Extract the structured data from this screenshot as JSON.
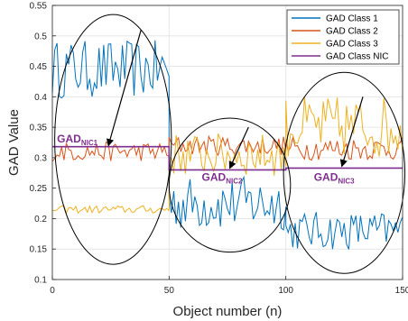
{
  "chart_data": {
    "type": "line",
    "title": "",
    "xlabel": "Object number (n)",
    "ylabel": "GAD Value",
    "xlim": [
      0,
      150
    ],
    "ylim": [
      0.1,
      0.55
    ],
    "x_ticks": [
      "0",
      "50",
      "100",
      "150"
    ],
    "y_ticks": [
      "0.1",
      "0.15",
      "0.2",
      "0.25",
      "0.3",
      "0.35",
      "0.4",
      "0.45",
      "0.5",
      "0.55"
    ],
    "grid": true,
    "legend": {
      "position": "top-right",
      "entries": [
        "GAD Class 1",
        "GAD Class 2",
        "GAD Class 3",
        "GAD Class NIC"
      ]
    },
    "series": [
      {
        "name": "GAD Class 1",
        "color": "#0072BD",
        "segments": [
          {
            "x_start": 0,
            "x_end": 50,
            "mean": 0.445,
            "spread": 0.03
          },
          {
            "x_start": 50,
            "x_end": 100,
            "mean": 0.225,
            "spread": 0.028
          },
          {
            "x_start": 100,
            "x_end": 150,
            "mean": 0.18,
            "spread": 0.02
          }
        ]
      },
      {
        "name": "GAD Class 2",
        "color": "#D95319",
        "segments": [
          {
            "x_start": 0,
            "x_end": 50,
            "mean": 0.31,
            "spread": 0.01
          },
          {
            "x_start": 50,
            "x_end": 100,
            "mean": 0.32,
            "spread": 0.01
          },
          {
            "x_start": 100,
            "x_end": 150,
            "mean": 0.315,
            "spread": 0.012
          }
        ]
      },
      {
        "name": "GAD Class 3",
        "color": "#EDB120",
        "segments": [
          {
            "x_start": 0,
            "x_end": 50,
            "mean": 0.215,
            "spread": 0.004
          },
          {
            "x_start": 50,
            "x_end": 100,
            "mean": 0.305,
            "spread": 0.022
          },
          {
            "x_start": 100,
            "x_end": 150,
            "mean": 0.35,
            "spread": 0.032
          }
        ]
      },
      {
        "name": "GAD Class NIC",
        "color": "#7E2F8E",
        "segments": [
          {
            "x_start": 0,
            "x_end": 50,
            "value": 0.318
          },
          {
            "x_start": 50,
            "x_end": 100,
            "value": 0.28
          },
          {
            "x_start": 100,
            "x_end": 150,
            "value": 0.283
          }
        ]
      }
    ],
    "annotations": [
      {
        "label": "GAD",
        "subscript": "NIC1",
        "color": "#7E2F8E",
        "x": 2,
        "y": 0.325,
        "arrow_from": [
          38,
          0.51
        ],
        "arrow_to": [
          24,
          0.32
        ]
      },
      {
        "label": "GAD",
        "subscript": "NIC2",
        "color": "#7E2F8E",
        "x": 64,
        "y": 0.262,
        "arrow_from": [
          84,
          0.35
        ],
        "arrow_to": [
          76,
          0.283
        ]
      },
      {
        "label": "GAD",
        "subscript": "NIC3",
        "color": "#7E2F8E",
        "x": 112,
        "y": 0.262,
        "arrow_from": [
          133,
          0.4
        ],
        "arrow_to": [
          124,
          0.286
        ]
      }
    ],
    "ellipses": [
      {
        "cx": 26,
        "cy": 0.33,
        "rx": 25,
        "ry": 0.205
      },
      {
        "cx": 76,
        "cy": 0.255,
        "rx": 26,
        "ry": 0.11
      },
      {
        "cx": 125,
        "cy": 0.275,
        "rx": 26,
        "ry": 0.165
      }
    ]
  }
}
